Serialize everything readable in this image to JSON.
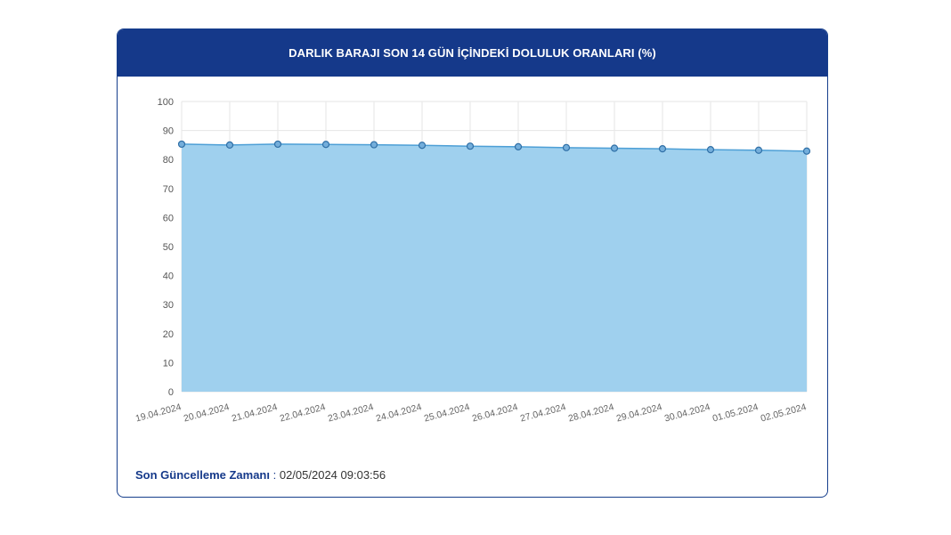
{
  "title": "DARLIK BARAJI SON 14 GÜN İÇİNDEKİ DOLULUK ORANLARI (%)",
  "footer": {
    "label": "Son Güncelleme Zamanı",
    "separator": " : ",
    "value": "02/05/2024 09:03:56"
  },
  "colors": {
    "header": "#15398a",
    "area_fill": "#9fd0ee",
    "line": "#4d9fd6",
    "marker_fill": "#74aedb",
    "marker_stroke": "#2f6fa6",
    "grid": "#e6e6e6"
  },
  "chart_data": {
    "type": "area",
    "title": "DARLIK BARAJI SON 14 GÜN İÇİNDEKİ DOLULUK ORANLARI (%)",
    "xlabel": "",
    "ylabel": "",
    "ylim": [
      0,
      100
    ],
    "yticks": [
      0,
      10,
      20,
      30,
      40,
      50,
      60,
      70,
      80,
      90,
      100
    ],
    "grid": true,
    "categories": [
      "19.04.2024",
      "20.04.2024",
      "21.04.2024",
      "22.04.2024",
      "23.04.2024",
      "24.04.2024",
      "25.04.2024",
      "26.04.2024",
      "27.04.2024",
      "28.04.2024",
      "29.04.2024",
      "30.04.2024",
      "01.05.2024",
      "02.05.2024"
    ],
    "series": [
      {
        "values": [
          85.3,
          85.0,
          85.3,
          85.2,
          85.1,
          84.9,
          84.6,
          84.4,
          84.1,
          83.9,
          83.7,
          83.4,
          83.2,
          82.9
        ]
      }
    ]
  }
}
